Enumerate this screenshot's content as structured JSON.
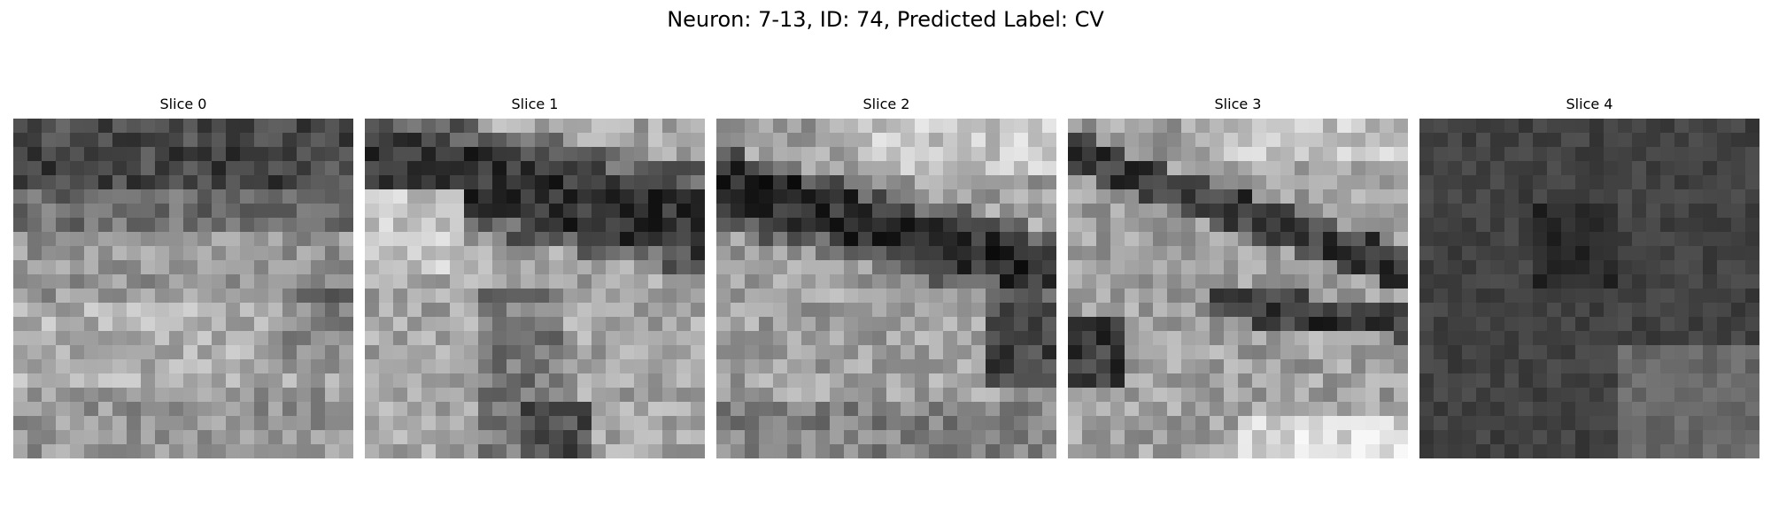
{
  "figure": {
    "title": "Neuron: 7-13, ID: 74, Predicted Label: CV"
  },
  "colormap": "gray",
  "slices": [
    {
      "title": "Slice 0",
      "image_description": "grayscale noise patch, dark band across top, lighter textured middle, medium-gray mottled bottom"
    },
    {
      "title": "Slice 1",
      "image_description": "grayscale patch with dark diagonal band from upper left to right, bright region center-left"
    },
    {
      "title": "Slice 2",
      "image_description": "grayscale patch with dark diagonal band from left descending to right center, bright upper right"
    },
    {
      "title": "Slice 3",
      "image_description": "grayscale patch with dark diagonal streaks from upper left to right, bright lower right arc"
    },
    {
      "title": "Slice 4",
      "image_description": "mostly dark grayscale patch with slightly lighter lower right area"
    }
  ]
}
